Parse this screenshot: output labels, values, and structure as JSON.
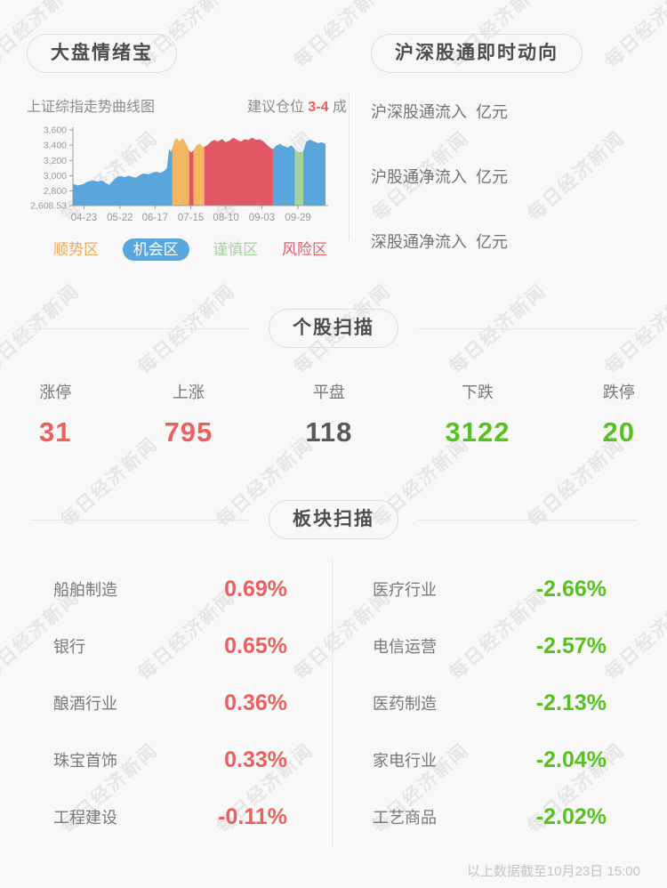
{
  "page": {
    "background": "#f8f8f8",
    "watermark_text": "每日经济新闻"
  },
  "colors": {
    "up_red": "#e9605e",
    "down_green": "#57c123",
    "flat_gray": "#595959",
    "zone_blue": "#58a6db",
    "zone_orange": "#f6b763",
    "zone_red": "#e15864",
    "zone_green": "#a6d29c"
  },
  "sentiment": {
    "title": "大盘情绪宝",
    "chart_title": "上证综指走势曲线图",
    "advice_prefix": "建议仓位 ",
    "advice_value": "3-4",
    "advice_suffix": " 成"
  },
  "stock_connect": {
    "title": "沪深股通即时动向",
    "rows": [
      {
        "label": "沪深股通流入",
        "unit": "亿元"
      },
      {
        "label": "沪股通净流入",
        "unit": "亿元"
      },
      {
        "label": "深股通净流入",
        "unit": "亿元"
      }
    ]
  },
  "stock_scan": {
    "title": "个股扫描",
    "items": [
      {
        "label": "涨停",
        "value": "31",
        "color": "#e9605e"
      },
      {
        "label": "上涨",
        "value": "795",
        "color": "#e9605e"
      },
      {
        "label": "平盘",
        "value": "118",
        "color": "#595959"
      },
      {
        "label": "下跌",
        "value": "3122",
        "color": "#57c123"
      },
      {
        "label": "跌停",
        "value": "20",
        "color": "#57c123"
      }
    ]
  },
  "sector_scan": {
    "title": "板块扫描",
    "left": [
      {
        "label": "船舶制造",
        "value": "0.69%",
        "color": "#e9605e"
      },
      {
        "label": "银行",
        "value": "0.65%",
        "color": "#e9605e"
      },
      {
        "label": "酿酒行业",
        "value": "0.36%",
        "color": "#e9605e"
      },
      {
        "label": "珠宝首饰",
        "value": "0.33%",
        "color": "#e9605e"
      },
      {
        "label": "工程建设",
        "value": "-0.11%",
        "color": "#e9605e"
      }
    ],
    "right": [
      {
        "label": "医疗行业",
        "value": "-2.66%",
        "color": "#57c123"
      },
      {
        "label": "电信运营",
        "value": "-2.57%",
        "color": "#57c123"
      },
      {
        "label": "医药制造",
        "value": "-2.13%",
        "color": "#57c123"
      },
      {
        "label": "家电行业",
        "value": "-2.04%",
        "color": "#57c123"
      },
      {
        "label": "工艺商品",
        "value": "-2.02%",
        "color": "#57c123"
      }
    ]
  },
  "footer": {
    "note": "以上数据截至10月23日 15:00"
  },
  "chart_data": {
    "type": "area",
    "title": "上证综指走势曲线图",
    "xlabel": "",
    "ylabel": "",
    "grid": false,
    "legend_position": "bottom",
    "ylim": [
      2608.53,
      3600
    ],
    "y_ticks": [
      {
        "label": "3,600",
        "value": 3600
      },
      {
        "label": "3,400",
        "value": 3400
      },
      {
        "label": "3,200",
        "value": 3200
      },
      {
        "label": "3,000",
        "value": 3000
      },
      {
        "label": "2,800",
        "value": 2800
      },
      {
        "label": "2,608.53",
        "value": 2608.53
      }
    ],
    "x_ticks": [
      {
        "label": "04-23",
        "f": 0.044
      },
      {
        "label": "05-22",
        "f": 0.186
      },
      {
        "label": "06-17",
        "f": 0.325
      },
      {
        "label": "07-15",
        "f": 0.467
      },
      {
        "label": "08-10",
        "f": 0.606
      },
      {
        "label": "09-03",
        "f": 0.748
      },
      {
        "label": "09-29",
        "f": 0.891
      }
    ],
    "points": [
      [
        0,
        2890
      ],
      [
        0.02,
        2872
      ],
      [
        0.04,
        2890
      ],
      [
        0.06,
        2925
      ],
      [
        0.08,
        2938
      ],
      [
        0.1,
        2922
      ],
      [
        0.115,
        2938
      ],
      [
        0.13,
        2905
      ],
      [
        0.145,
        2880
      ],
      [
        0.16,
        2938
      ],
      [
        0.175,
        2985
      ],
      [
        0.19,
        2995
      ],
      [
        0.205,
        2982
      ],
      [
        0.22,
        3000
      ],
      [
        0.235,
        2985
      ],
      [
        0.25,
        2975
      ],
      [
        0.265,
        3008
      ],
      [
        0.28,
        3028
      ],
      [
        0.3,
        3018
      ],
      [
        0.315,
        3040
      ],
      [
        0.33,
        3052
      ],
      [
        0.345,
        3038
      ],
      [
        0.36,
        3058
      ],
      [
        0.372,
        3095
      ],
      [
        0.381,
        3355
      ],
      [
        0.388,
        3310
      ],
      [
        0.394,
        3365
      ],
      [
        0.402,
        3465
      ],
      [
        0.412,
        3492
      ],
      [
        0.422,
        3448
      ],
      [
        0.432,
        3490
      ],
      [
        0.442,
        3462
      ],
      [
        0.452,
        3392
      ],
      [
        0.46,
        3332
      ],
      [
        0.468,
        3305
      ],
      [
        0.478,
        3335
      ],
      [
        0.49,
        3402
      ],
      [
        0.503,
        3420
      ],
      [
        0.515,
        3372
      ],
      [
        0.53,
        3392
      ],
      [
        0.545,
        3442
      ],
      [
        0.56,
        3468
      ],
      [
        0.575,
        3448
      ],
      [
        0.59,
        3480
      ],
      [
        0.605,
        3440
      ],
      [
        0.62,
        3460
      ],
      [
        0.635,
        3500
      ],
      [
        0.65,
        3468
      ],
      [
        0.665,
        3448
      ],
      [
        0.68,
        3478
      ],
      [
        0.695,
        3468
      ],
      [
        0.71,
        3498
      ],
      [
        0.725,
        3468
      ],
      [
        0.74,
        3478
      ],
      [
        0.755,
        3448
      ],
      [
        0.77,
        3398
      ],
      [
        0.785,
        3358
      ],
      [
        0.792,
        3348
      ],
      [
        0.805,
        3392
      ],
      [
        0.82,
        3418
      ],
      [
        0.835,
        3388
      ],
      [
        0.85,
        3368
      ],
      [
        0.865,
        3398
      ],
      [
        0.879,
        3348
      ],
      [
        0.89,
        3318
      ],
      [
        0.903,
        3302
      ],
      [
        0.912,
        3325
      ],
      [
        0.925,
        3452
      ],
      [
        0.94,
        3470
      ],
      [
        0.955,
        3448
      ],
      [
        0.97,
        3428
      ],
      [
        0.985,
        3438
      ],
      [
        1,
        3418
      ]
    ],
    "zones": [
      {
        "from": 0,
        "to": 0.394,
        "name": "机会区",
        "color": "#58a6db"
      },
      {
        "from": 0.394,
        "to": 0.46,
        "name": "顺势区",
        "color": "#f6b763"
      },
      {
        "from": 0.46,
        "to": 0.478,
        "name": "风险区",
        "color": "#e15864"
      },
      {
        "from": 0.478,
        "to": 0.52,
        "name": "顺势区",
        "color": "#f6b763"
      },
      {
        "from": 0.52,
        "to": 0.792,
        "name": "风险区",
        "color": "#e15864"
      },
      {
        "from": 0.792,
        "to": 0.879,
        "name": "机会区",
        "color": "#58a6db"
      },
      {
        "from": 0.879,
        "to": 0.912,
        "name": "谨慎区",
        "color": "#a6d29c"
      },
      {
        "from": 0.912,
        "to": 1,
        "name": "机会区",
        "color": "#58a6db"
      }
    ],
    "legend": [
      {
        "label": "顺势区",
        "color": "#f0a85a",
        "active": false
      },
      {
        "label": "机会区",
        "color": "#58a6db",
        "active": true
      },
      {
        "label": "谨慎区",
        "color": "#a6d29c",
        "active": false
      },
      {
        "label": "风险区",
        "color": "#e2606c",
        "active": false
      }
    ]
  }
}
